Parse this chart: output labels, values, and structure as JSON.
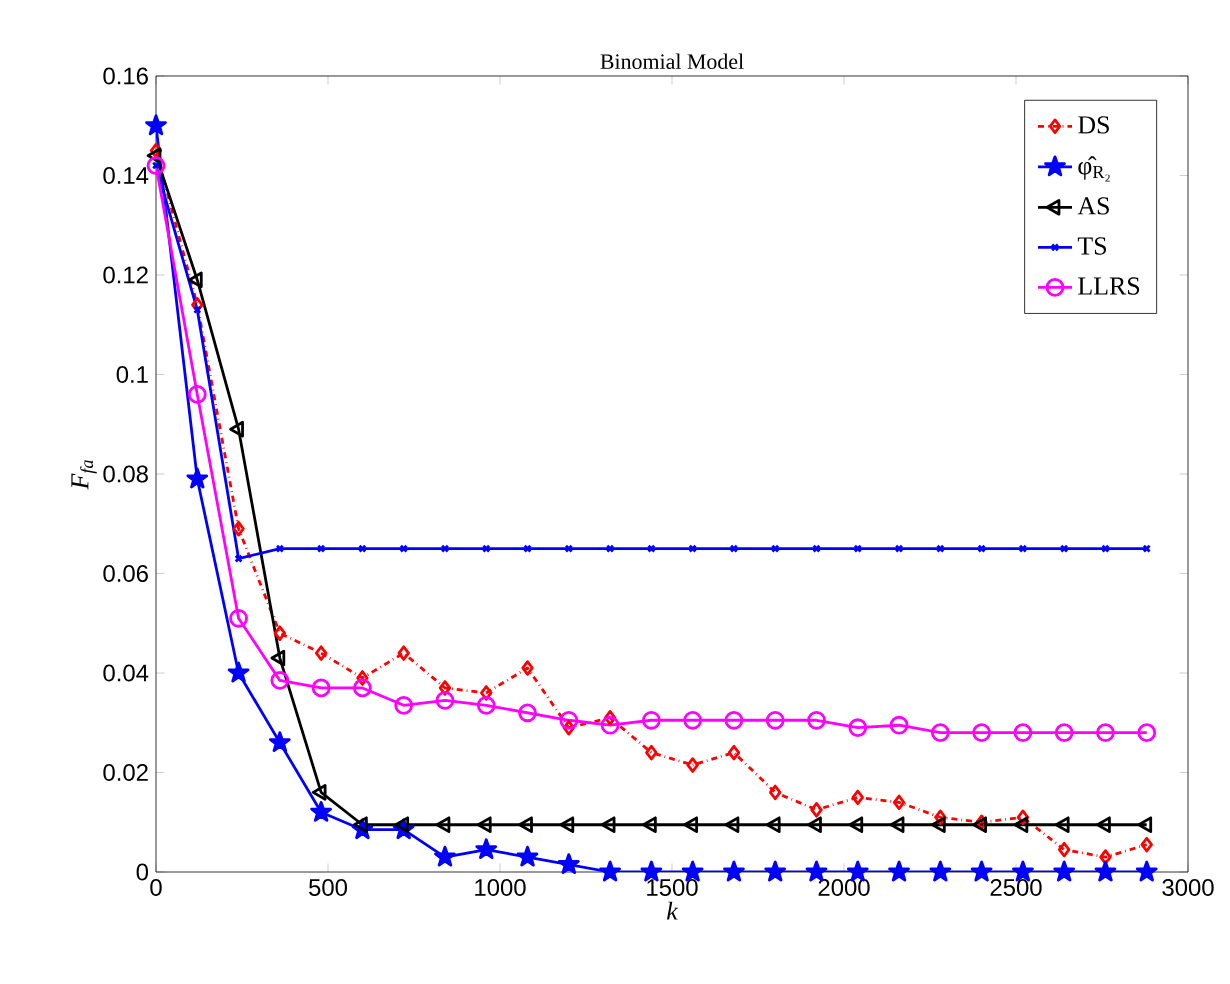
{
  "chart_data": {
    "type": "line",
    "title": "Binomial Model",
    "xlabel": "k",
    "ylabel": "F$_{fa}$",
    "x": [
      0,
      120,
      240,
      360,
      480,
      600,
      720,
      840,
      960,
      1080,
      1200,
      1320,
      1440,
      1560,
      1680,
      1800,
      1920,
      2040,
      2160,
      2280,
      2400,
      2520,
      2640,
      2760,
      2880
    ],
    "series": [
      {
        "name": "DS",
        "color": "#ff0000",
        "marker": "diamond",
        "line_style": "dashdot",
        "values": [
          0.145,
          0.114,
          0.069,
          0.048,
          0.044,
          0.039,
          0.044,
          0.037,
          0.036,
          0.041,
          0.029,
          0.031,
          0.024,
          0.0215,
          0.024,
          0.016,
          0.0125,
          0.015,
          0.014,
          0.011,
          0.01,
          0.011,
          0.0045,
          0.003,
          0.0055
        ]
      },
      {
        "name": "φ̂$_{R₂}$",
        "color": "#0000ff",
        "marker": "star",
        "line_style": "solid",
        "values": [
          0.15,
          0.079,
          0.04,
          0.026,
          0.012,
          0.0085,
          0.0085,
          0.003,
          0.0045,
          0.003,
          0.0015,
          0,
          0,
          0,
          0,
          0,
          0,
          0,
          0,
          0,
          0,
          0,
          0,
          0,
          0
        ]
      },
      {
        "name": "AS",
        "color": "#000000",
        "marker": "triangle",
        "line_style": "solid",
        "values": [
          0.144,
          0.119,
          0.089,
          0.043,
          0.016,
          0.0095,
          0.0095,
          0.0095,
          0.0095,
          0.0095,
          0.0095,
          0.0095,
          0.0095,
          0.0095,
          0.0095,
          0.0095,
          0.0095,
          0.0095,
          0.0095,
          0.0095,
          0.0095,
          0.0095,
          0.0095,
          0.0095,
          0.0095
        ]
      },
      {
        "name": "TS",
        "color": "#0000ff",
        "marker": "cross",
        "line_style": "solid",
        "values": [
          0.142,
          0.113,
          0.063,
          0.065,
          0.065,
          0.065,
          0.065,
          0.065,
          0.065,
          0.065,
          0.065,
          0.065,
          0.065,
          0.065,
          0.065,
          0.065,
          0.065,
          0.065,
          0.065,
          0.065,
          0.065,
          0.065,
          0.065,
          0.065,
          0.065
        ]
      },
      {
        "name": "LLRS",
        "color": "#ff00ff",
        "marker": "circle",
        "line_style": "solid",
        "values": [
          0.142,
          0.096,
          0.051,
          0.0385,
          0.037,
          0.037,
          0.0335,
          0.0345,
          0.0335,
          0.032,
          0.0305,
          0.0295,
          0.0305,
          0.0305,
          0.0305,
          0.0305,
          0.0305,
          0.029,
          0.0295,
          0.028,
          0.028,
          0.028,
          0.028,
          0.028,
          0.028
        ]
      }
    ],
    "xlim": [
      0,
      3000
    ],
    "ylim": [
      0,
      0.16
    ],
    "xticks": [
      0,
      500,
      1000,
      1500,
      2000,
      2500,
      3000
    ],
    "yticks": [
      0,
      0.02,
      0.04,
      0.06,
      0.08,
      0.1,
      0.12,
      0.14,
      0.16
    ],
    "grid": false,
    "legend": "top right"
  }
}
